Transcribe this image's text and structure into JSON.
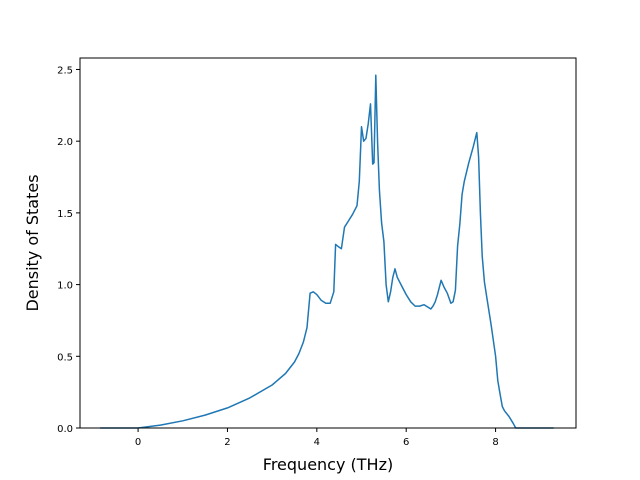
{
  "chart_data": {
    "type": "line",
    "title": "",
    "xlabel": "Frequency (THz)",
    "ylabel": "Density of States",
    "xlim": [
      -1.3,
      9.8
    ],
    "ylim": [
      0.0,
      2.58
    ],
    "xticks": [
      0,
      2,
      4,
      6,
      8
    ],
    "yticks": [
      0.0,
      0.5,
      1.0,
      1.5,
      2.0,
      2.5
    ],
    "xtick_labels": [
      "0",
      "2",
      "4",
      "6",
      "8"
    ],
    "ytick_labels": [
      "0.0",
      "0.5",
      "1.0",
      "1.5",
      "2.0",
      "2.5"
    ],
    "grid": false,
    "legend": "none",
    "color": "#1f77b4",
    "series": [
      {
        "x": [
          -0.85,
          0.0,
          0.5,
          1.0,
          1.5,
          2.0,
          2.5,
          3.0,
          3.3,
          3.5,
          3.6,
          3.7,
          3.78,
          3.85,
          3.92,
          4.0,
          4.1,
          4.2,
          4.3,
          4.38,
          4.42,
          4.5,
          4.55,
          4.62,
          4.7,
          4.8,
          4.9,
          4.95,
          5.0,
          5.05,
          5.1,
          5.15,
          5.2,
          5.25,
          5.28,
          5.32,
          5.36,
          5.4,
          5.45,
          5.5,
          5.55,
          5.6,
          5.65,
          5.7,
          5.75,
          5.8,
          5.85,
          5.9,
          6.0,
          6.1,
          6.2,
          6.3,
          6.4,
          6.5,
          6.55,
          6.6,
          6.65,
          6.7,
          6.78,
          6.85,
          6.92,
          7.0,
          7.05,
          7.1,
          7.15,
          7.2,
          7.25,
          7.3,
          7.4,
          7.5,
          7.58,
          7.62,
          7.66,
          7.7,
          7.75,
          7.8,
          7.9,
          8.0,
          8.05,
          8.1,
          8.15,
          8.2,
          8.3,
          8.4,
          8.45,
          9.3
        ],
        "y": [
          0.0,
          0.0,
          0.02,
          0.05,
          0.09,
          0.14,
          0.21,
          0.3,
          0.38,
          0.46,
          0.52,
          0.6,
          0.7,
          0.94,
          0.95,
          0.93,
          0.89,
          0.87,
          0.87,
          0.95,
          1.28,
          1.26,
          1.25,
          1.4,
          1.44,
          1.49,
          1.55,
          1.72,
          2.1,
          2.0,
          2.02,
          2.12,
          2.26,
          1.84,
          1.85,
          2.46,
          1.99,
          1.66,
          1.43,
          1.3,
          1.0,
          0.88,
          0.95,
          1.05,
          1.11,
          1.05,
          1.02,
          0.99,
          0.93,
          0.88,
          0.85,
          0.85,
          0.86,
          0.84,
          0.83,
          0.85,
          0.88,
          0.93,
          1.03,
          0.98,
          0.94,
          0.87,
          0.88,
          0.96,
          1.27,
          1.42,
          1.63,
          1.72,
          1.85,
          1.96,
          2.06,
          1.89,
          1.5,
          1.2,
          1.02,
          0.92,
          0.72,
          0.5,
          0.33,
          0.24,
          0.15,
          0.12,
          0.08,
          0.03,
          0.0,
          0.0
        ]
      }
    ]
  }
}
